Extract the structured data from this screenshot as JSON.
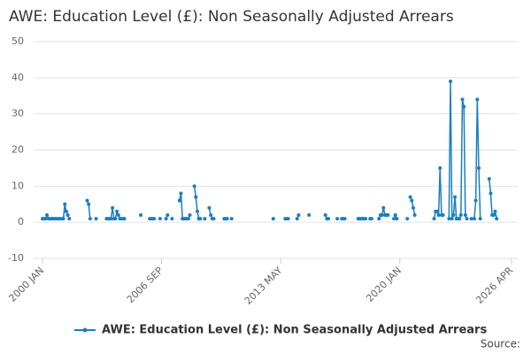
{
  "chart_data": {
    "type": "line",
    "title": "AWE: Education Level (£): Non Seasonally Adjusted Arrears",
    "source": "Source:",
    "x": [
      "2000-01",
      "2000-02",
      "2000-03",
      "2000-04",
      "2000-05",
      "2000-06",
      "2000-07",
      "2000-08",
      "2000-09",
      "2000-10",
      "2000-11",
      "2000-12",
      "2001-01",
      "2001-02",
      "2001-03",
      "2001-04",
      "2001-05",
      "2001-06",
      "2001-07",
      "2001-08",
      "2002-07",
      "2002-08",
      "2002-09",
      "2002-10",
      "2003-01",
      "2003-02",
      "2003-08",
      "2003-09",
      "2003-10",
      "2003-11",
      "2003-12",
      "2004-01",
      "2004-02",
      "2004-03",
      "2004-04",
      "2004-05",
      "2004-06",
      "2004-07",
      "2004-08",
      "2004-09",
      "2005-07",
      "2005-08",
      "2006-01",
      "2006-02",
      "2006-03",
      "2006-04",
      "2006-05",
      "2006-08",
      "2006-09",
      "2006-12",
      "2007-01",
      "2007-02",
      "2007-04",
      "2007-05",
      "2007-09",
      "2007-10",
      "2007-11",
      "2007-12",
      "2008-01",
      "2008-02",
      "2008-03",
      "2008-04",
      "2008-05",
      "2008-07",
      "2008-08",
      "2008-09",
      "2008-10",
      "2008-11",
      "2008-12",
      "2009-02",
      "2009-03",
      "2009-05",
      "2009-06",
      "2009-07",
      "2009-08",
      "2009-09",
      "2010-03",
      "2010-04",
      "2010-05",
      "2010-06",
      "2010-08",
      "2010-09",
      "2012-12",
      "2013-01",
      "2013-08",
      "2013-09",
      "2013-10",
      "2013-11",
      "2014-04",
      "2014-05",
      "2014-06",
      "2014-12",
      "2015-01",
      "2015-11",
      "2015-12",
      "2016-01",
      "2016-02",
      "2016-07",
      "2016-08",
      "2016-10",
      "2016-11",
      "2016-12",
      "2017-01",
      "2017-09",
      "2017-10",
      "2017-11",
      "2017-12",
      "2018-01",
      "2018-02",
      "2018-03",
      "2018-05",
      "2018-06",
      "2018-07",
      "2018-11",
      "2018-12",
      "2019-01",
      "2019-02",
      "2019-03",
      "2019-04",
      "2019-05",
      "2019-06",
      "2019-09",
      "2019-10",
      "2019-11",
      "2019-12",
      "2020-06",
      "2020-07",
      "2020-08",
      "2020-09",
      "2020-10",
      "2020-11",
      "2020-12",
      "2021-12",
      "2022-01",
      "2022-02",
      "2022-03",
      "2022-04",
      "2022-05",
      "2022-06",
      "2022-07",
      "2022-10",
      "2022-11",
      "2022-12",
      "2023-01",
      "2023-02",
      "2023-03",
      "2023-04",
      "2023-05",
      "2023-06",
      "2023-07",
      "2023-08",
      "2023-09",
      "2023-10",
      "2023-11",
      "2024-01",
      "2024-02",
      "2024-03",
      "2024-04",
      "2024-05",
      "2024-06",
      "2024-07",
      "2024-08",
      "2025-01",
      "2025-02",
      "2025-03",
      "2025-04",
      "2025-05",
      "2025-06"
    ],
    "series": [
      {
        "name": "AWE: Education Level (£): Non Seasonally Adjusted Arrears",
        "color": "#1a7fc1",
        "values": [
          1,
          1,
          1,
          2,
          1,
          1,
          1,
          1,
          1,
          1,
          1,
          1,
          1,
          1,
          1,
          5,
          3,
          2,
          1,
          null,
          6,
          5,
          1,
          null,
          1,
          null,
          1,
          1,
          1,
          1,
          4,
          1,
          1,
          3,
          2,
          1,
          1,
          1,
          1,
          null,
          2,
          null,
          1,
          1,
          1,
          1,
          null,
          1,
          null,
          1,
          2,
          null,
          1,
          null,
          6,
          8,
          1,
          1,
          1,
          1,
          1,
          2,
          null,
          10,
          7,
          3,
          1,
          1,
          null,
          1,
          null,
          4,
          2,
          1,
          1,
          null,
          1,
          1,
          1,
          null,
          1,
          null,
          1,
          null,
          1,
          1,
          1,
          null,
          1,
          2,
          null,
          2,
          null,
          2,
          1,
          1,
          null,
          1,
          null,
          1,
          1,
          1,
          null,
          1,
          1,
          1,
          1,
          1,
          1,
          null,
          1,
          1,
          null,
          1,
          2,
          2,
          4,
          2,
          2,
          2,
          null,
          1,
          2,
          1,
          null,
          1,
          null,
          7,
          6,
          4,
          2,
          null,
          1,
          3,
          3,
          2,
          15,
          2,
          2,
          null,
          1,
          39,
          1,
          2,
          7,
          1,
          1,
          1,
          2,
          34,
          32,
          2,
          1,
          null,
          1,
          null,
          1,
          6,
          34,
          15,
          1,
          null,
          12,
          8,
          2,
          2,
          3,
          1
        ]
      }
    ],
    "xlim": [
      "2000-01",
      "2026-04"
    ],
    "xticks": [
      {
        "value": "2000-01",
        "label": "2000 JAN"
      },
      {
        "value": "2006-09",
        "label": "2006 SEP"
      },
      {
        "value": "2013-05",
        "label": "2013 MAY"
      },
      {
        "value": "2020-01",
        "label": "2020 JAN"
      },
      {
        "value": "2026-04",
        "label": "2026 APR"
      }
    ],
    "ylim": [
      -10,
      50
    ],
    "yticks": [
      -10,
      0,
      10,
      20,
      30,
      40,
      50
    ],
    "grid": true,
    "legend": "bottom"
  }
}
